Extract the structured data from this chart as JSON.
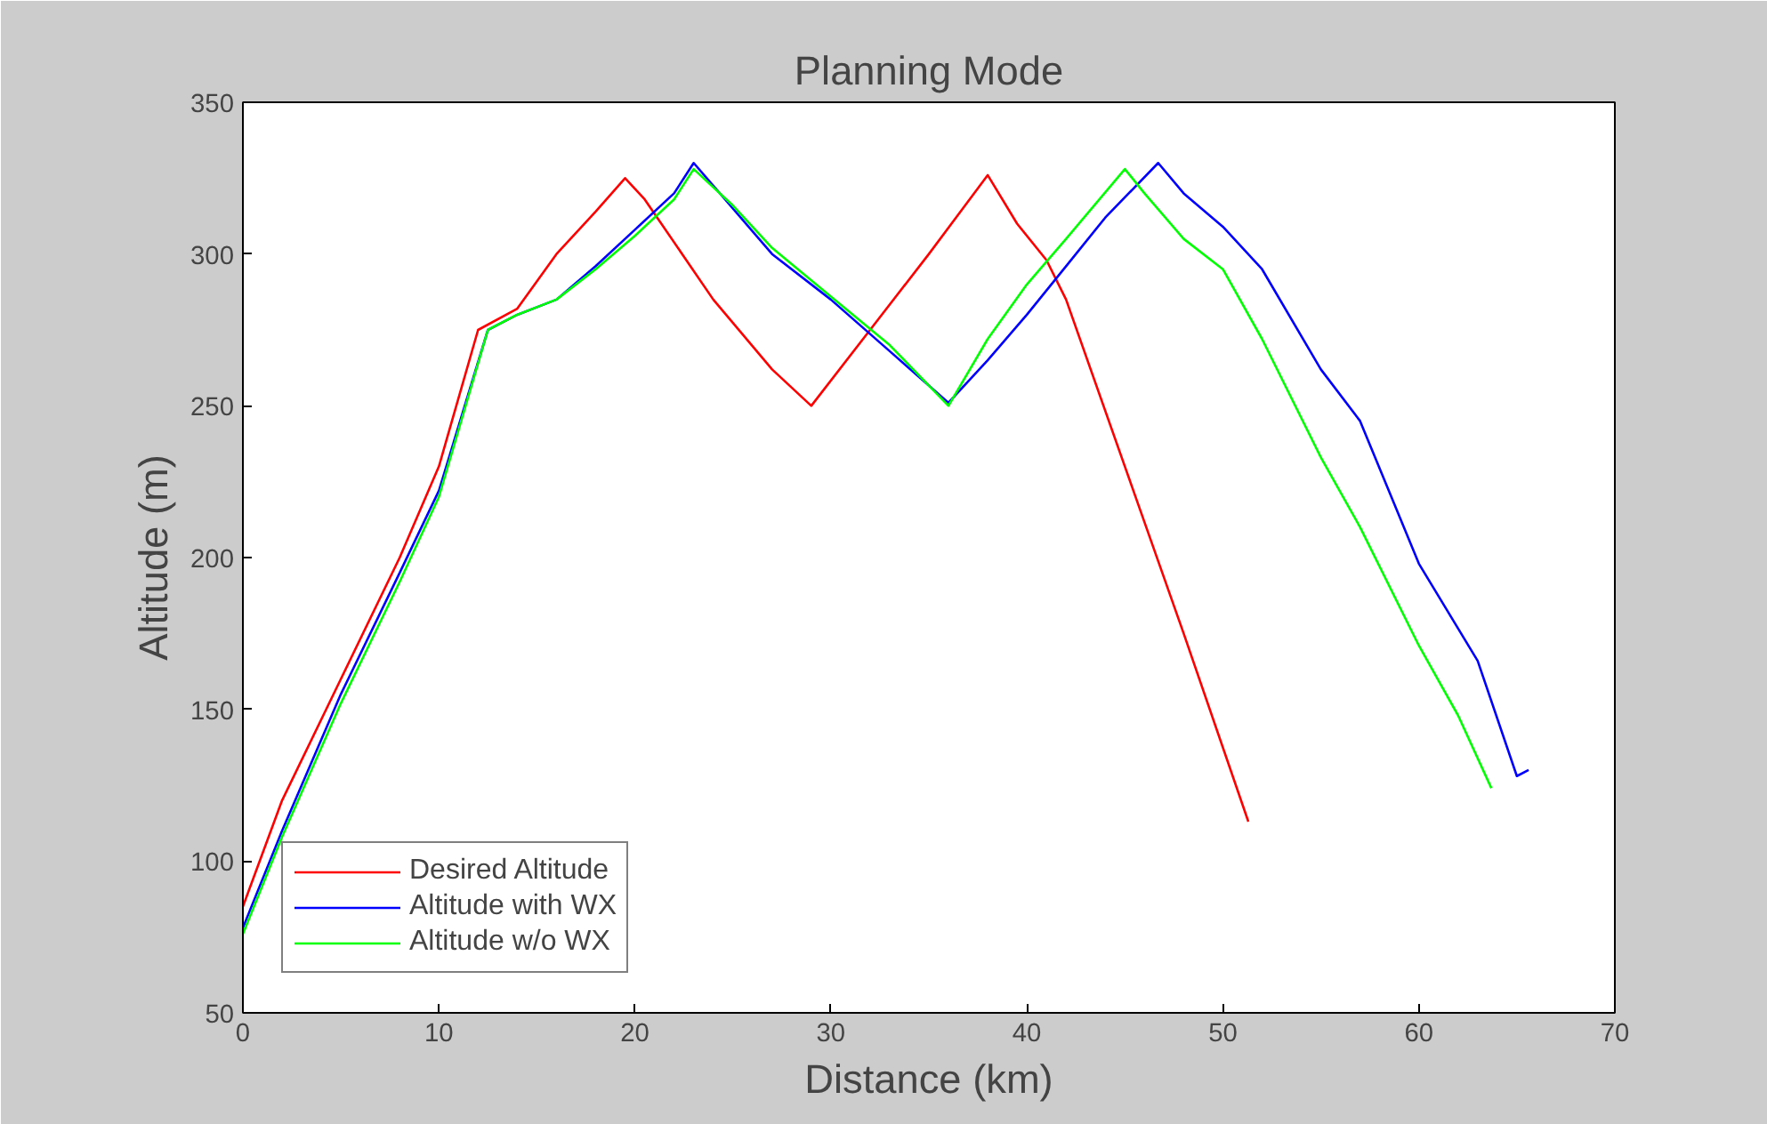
{
  "chart_data": {
    "type": "line",
    "title": "Planning Mode",
    "xlabel": "Distance (km)",
    "ylabel": "Altitude (m)",
    "xlim": [
      0,
      70
    ],
    "ylim": [
      50,
      350
    ],
    "xticks": [
      0,
      10,
      20,
      30,
      40,
      50,
      60,
      70
    ],
    "yticks": [
      50,
      100,
      150,
      200,
      250,
      300,
      350
    ],
    "grid": false,
    "legend": "bottom left",
    "line_style": "solid",
    "marker": "none",
    "series": [
      {
        "name": "Desired Altitude",
        "color": "#ff0000",
        "x": [
          0,
          2,
          5,
          8,
          10,
          12,
          14,
          16,
          18,
          19.5,
          20.5,
          24,
          27,
          29,
          32,
          35,
          38,
          39.5,
          41,
          42,
          45,
          48,
          51.3
        ],
        "values": [
          85,
          120,
          160,
          200,
          230,
          275,
          282,
          300,
          314,
          325,
          318,
          285,
          262,
          250,
          275,
          300,
          326,
          310,
          298,
          285,
          230,
          175,
          113
        ]
      },
      {
        "name": "Altitude with WX",
        "color": "#0000ff",
        "x": [
          0,
          2,
          5,
          8,
          10,
          12.5,
          14,
          16,
          18,
          20,
          22,
          23,
          25,
          27,
          30,
          33,
          36,
          38,
          40,
          42,
          44,
          46.7,
          48,
          50,
          52,
          55,
          57,
          60,
          63,
          65,
          65.6
        ],
        "values": [
          78,
          110,
          155,
          195,
          222,
          275,
          280,
          285,
          296,
          308,
          320,
          330,
          315,
          300,
          285,
          268,
          251,
          265,
          280,
          296,
          312,
          330,
          320,
          309,
          295,
          262,
          245,
          198,
          166,
          128,
          130
        ]
      },
      {
        "name": "Altitude w/o WX",
        "color": "#00ff00",
        "x": [
          0,
          2,
          5,
          8,
          10,
          12.5,
          14,
          16,
          18,
          20,
          22,
          23,
          25,
          27,
          30,
          33,
          36,
          38,
          40,
          42,
          45,
          46,
          48,
          50,
          52,
          55,
          57,
          60,
          62,
          63.7
        ],
        "values": [
          76,
          108,
          152,
          192,
          220,
          275,
          280,
          285,
          295,
          306,
          318,
          328,
          316,
          302,
          286,
          270,
          250,
          272,
          290,
          305,
          328,
          320,
          305,
          295,
          272,
          233,
          210,
          171,
          148,
          124
        ]
      }
    ]
  }
}
